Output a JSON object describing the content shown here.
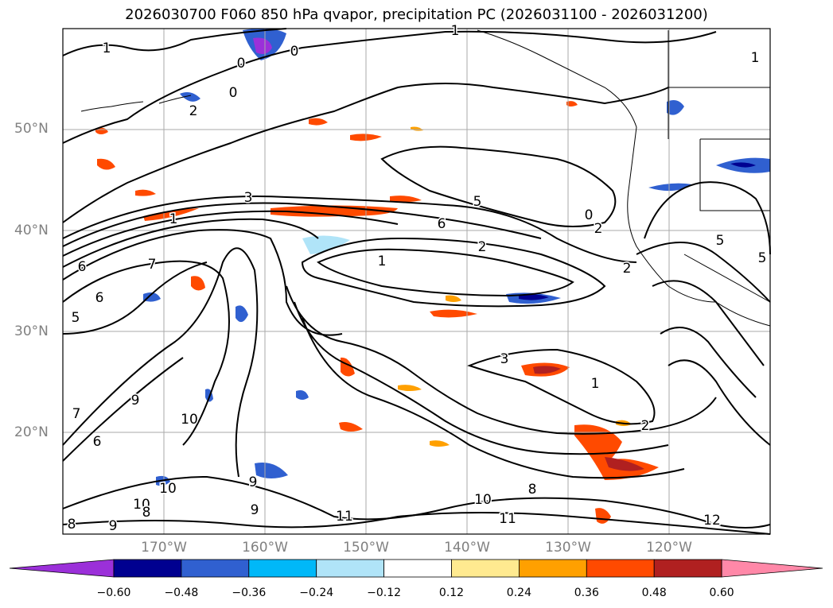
{
  "title": "2026030700 F060 850 hPa qvapor, precipitation PC (2026031100 - 2026031200)",
  "lat_labels": [
    "50°N",
    "40°N",
    "30°N",
    "20°N"
  ],
  "lon_labels": [
    "170°W",
    "160°W",
    "150°W",
    "140°W",
    "130°W",
    "120°W"
  ],
  "colorbar": {
    "ticks": [
      "−0.60",
      "−0.48",
      "−0.36",
      "−0.24",
      "−0.12",
      "0.12",
      "0.24",
      "0.36",
      "0.48",
      "0.60"
    ],
    "colors": [
      "#9b30d9",
      "#000090",
      "#3060d0",
      "#00b8f8",
      "#b0e4f8",
      "#ffffff",
      "#ffea90",
      "#ffa000",
      "#ff4a00",
      "#b02020",
      "#ff88a8"
    ]
  },
  "contour_labels": [
    "1",
    "0",
    "0",
    "1",
    "0",
    "2",
    "3",
    "1",
    "5",
    "6",
    "2",
    "1",
    "0",
    "2",
    "2",
    "7",
    "6",
    "6",
    "5",
    "3",
    "1",
    "9",
    "7",
    "6",
    "10",
    "9",
    "10",
    "10",
    "8",
    "10",
    "8",
    "11",
    "11",
    "9",
    "8",
    "9",
    "2",
    "12",
    "5",
    "5",
    "1"
  ]
}
